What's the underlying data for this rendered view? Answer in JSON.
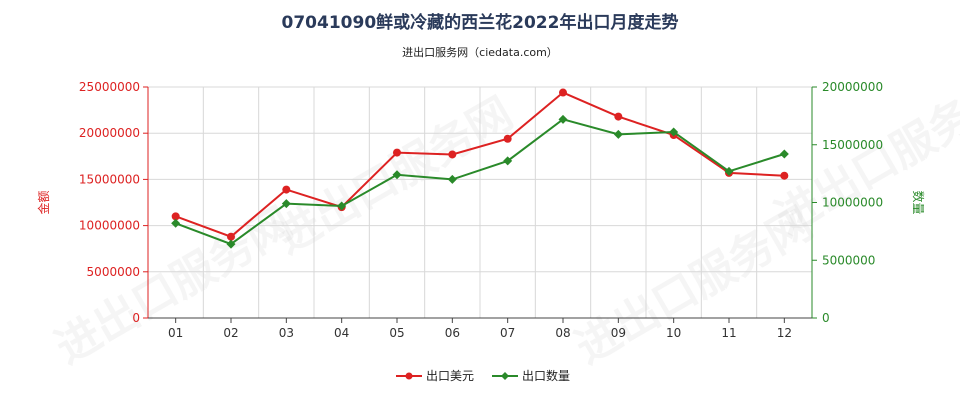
{
  "title": "07041090鲜或冷藏的西兰花2022年出口月度走势",
  "subtitle": "进出口服务网（ciedata.com）",
  "watermark": "进出口服务网",
  "chart_data": {
    "type": "line",
    "categories": [
      "01",
      "02",
      "03",
      "04",
      "05",
      "06",
      "07",
      "08",
      "09",
      "10",
      "11",
      "12"
    ],
    "y_left": {
      "label": "金额",
      "ticks": [
        "0",
        "5000000",
        "10000000",
        "15000000",
        "20000000",
        "25000000"
      ],
      "lim": [
        0,
        25000000
      ],
      "color": "#dd2222"
    },
    "y_right": {
      "label": "数量",
      "ticks": [
        "0",
        "5000000",
        "10000000",
        "15000000",
        "20000000"
      ],
      "lim": [
        0,
        20000000
      ],
      "color": "#2a8a2a"
    },
    "series": [
      {
        "name": "出口美元",
        "axis": "left",
        "color": "#dd2222",
        "marker": "circle",
        "values": [
          11000000,
          8800000,
          13900000,
          12000000,
          17900000,
          17700000,
          19400000,
          24400000,
          21800000,
          19800000,
          15700000,
          15400000
        ]
      },
      {
        "name": "出口数量",
        "axis": "right",
        "color": "#2a8a2a",
        "marker": "diamond",
        "values": [
          8200000,
          6400000,
          9900000,
          9700000,
          12400000,
          12000000,
          13600000,
          17200000,
          15900000,
          16100000,
          12700000,
          14200000
        ]
      }
    ],
    "grid": true,
    "legend_position": "bottom"
  }
}
